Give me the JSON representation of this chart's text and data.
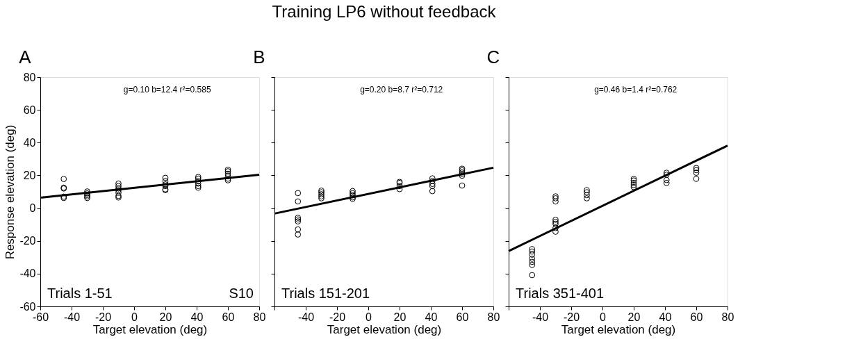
{
  "chart_data": [
    {
      "type": "scatter",
      "xlabel": "Target elevation (deg)",
      "ylabel": "Response elevation (deg)",
      "xlim": [
        -60,
        80
      ],
      "ylim": [
        -60,
        80
      ],
      "xticks": [
        -60,
        -40,
        -20,
        0,
        20,
        40,
        60,
        80
      ],
      "yticks": [
        -60,
        -40,
        -20,
        0,
        20,
        40,
        60,
        80
      ],
      "annotations": [
        "A",
        "g=0.10 b=12.4 r²=0.585",
        "Trials 1-51",
        "S10"
      ],
      "series": [
        {
          "type": "scatter",
          "marker": "circle",
          "color": "#000000",
          "x": [
            -45,
            -45,
            -45,
            -45,
            -45,
            -30,
            -30,
            -30,
            -30,
            -30,
            -10,
            -10,
            -10,
            -10,
            -10,
            -10,
            -10,
            20,
            20,
            20,
            20,
            20,
            20,
            41,
            41,
            41,
            41,
            41,
            41,
            60,
            60,
            60,
            60,
            60,
            60
          ],
          "values": [
            17.8,
            12.5,
            12,
            7,
            6.2,
            10.2,
            9,
            8,
            7.2,
            6.2,
            15,
            13.5,
            12,
            11,
            9.5,
            7.5,
            6.5,
            18.5,
            16.5,
            14.5,
            13.5,
            11.5,
            11,
            19,
            18,
            16.5,
            15,
            13.5,
            12.5,
            23.5,
            22.5,
            21,
            19.5,
            18,
            17
          ]
        },
        {
          "type": "line",
          "color": "#000000",
          "x": [
            -60,
            80
          ],
          "values": [
            6.4,
            20.4
          ]
        }
      ]
    },
    {
      "type": "scatter",
      "title": "Training LP6 without feedback",
      "xlabel": "Target elevation (deg)",
      "xlim": [
        -60,
        80
      ],
      "ylim": [
        -60,
        80
      ],
      "xticks": [
        {
          "value": -60,
          "label": null
        },
        -40,
        -20,
        0,
        20,
        40,
        60,
        80
      ],
      "yticks": [
        -60,
        -40,
        -20,
        0,
        20,
        40,
        60,
        80
      ],
      "tick_labels": "x",
      "annotations": [
        "B",
        "g=0.20  b=8.7 r²=0.712",
        "Trials 151-201"
      ],
      "series": [
        {
          "type": "scatter",
          "marker": "circle",
          "color": "#000000",
          "x": [
            -45,
            -45,
            -45,
            -45,
            -45,
            -45,
            -45,
            -30,
            -30,
            -30,
            -30,
            -30,
            -10,
            -10,
            -10,
            -10,
            -10,
            20,
            20,
            20,
            20,
            41,
            41,
            41,
            41,
            41,
            60,
            60,
            60,
            60,
            60,
            60
          ],
          "values": [
            9.2,
            4.1,
            -5.9,
            -6.9,
            -8.1,
            -13,
            -16.1,
            10.7,
            9.7,
            8.5,
            7.2,
            6,
            10.4,
            9.1,
            7.9,
            6.6,
            5.7,
            16,
            15.4,
            13.5,
            11.6,
            18.2,
            16.6,
            14.8,
            13.5,
            10.4,
            24.1,
            23.1,
            21.9,
            21,
            19.8,
            13.8
          ]
        },
        {
          "type": "line",
          "color": "#000000",
          "x": [
            -60,
            80
          ],
          "values": [
            -3.3,
            24.7
          ]
        }
      ]
    },
    {
      "type": "scatter",
      "xlabel": "Target elevation (deg)",
      "xlim": [
        -60,
        80
      ],
      "ylim": [
        -60,
        80
      ],
      "xticks": [
        {
          "value": -60,
          "label": null
        },
        -40,
        -20,
        0,
        20,
        40,
        60,
        80
      ],
      "yticks": [
        -60,
        -40,
        -20,
        0,
        20,
        40,
        60,
        80
      ],
      "tick_labels": "x",
      "annotations": [
        "C",
        "g=0.46  b=1.4 r²=0.762",
        "Trials 351-401"
      ],
      "series": [
        {
          "type": "scatter",
          "marker": "circle",
          "color": "#000000",
          "x": [
            -45,
            -45,
            -45,
            -45,
            -45,
            -45,
            -45,
            -30,
            -30,
            -30,
            -30,
            -30,
            -30,
            -30,
            -30,
            -10,
            -10,
            -10,
            -10,
            20,
            20,
            20,
            20,
            20,
            41,
            41,
            41,
            41,
            60,
            60,
            60,
            60
          ],
          "values": [
            -25,
            -26.5,
            -28.4,
            -30.9,
            -32.8,
            -34.6,
            -40.9,
            7.2,
            6,
            4.1,
            -7.1,
            -8.4,
            -9.6,
            -12.1,
            -14.4,
            11,
            9.7,
            7.9,
            6,
            17.9,
            16.9,
            15.4,
            14.1,
            12.9,
            21.6,
            20.4,
            17.2,
            15.4,
            24.5,
            23.2,
            21.6,
            17.9
          ]
        },
        {
          "type": "line",
          "color": "#000000",
          "x": [
            -60,
            80
          ],
          "values": [
            -26.2,
            38.2
          ]
        }
      ]
    }
  ]
}
